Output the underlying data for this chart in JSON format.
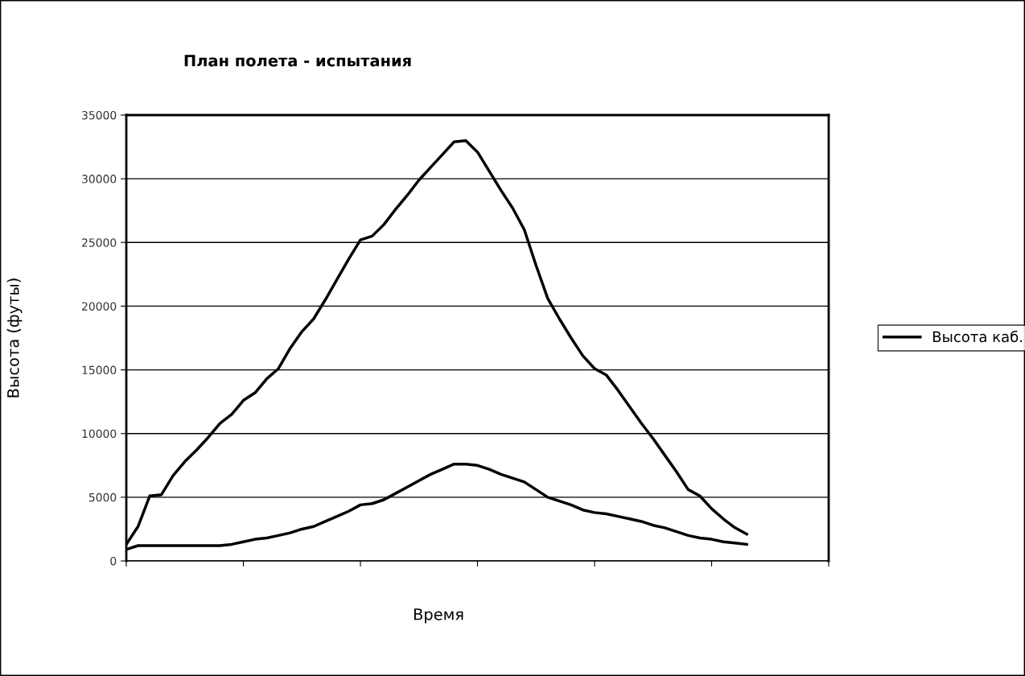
{
  "chart_data": {
    "type": "line",
    "title": "План полета - испытания",
    "xlabel": "Время",
    "ylabel": "Высота (футы)",
    "categories": [
      null,
      null,
      null,
      null,
      null,
      null,
      null,
      null,
      null,
      null,
      null,
      null,
      null,
      null,
      null,
      null,
      null,
      null,
      null,
      null,
      null,
      null,
      null,
      null,
      null,
      null,
      null,
      null,
      null,
      null,
      null,
      null,
      null,
      null,
      null,
      null,
      null,
      null,
      null,
      null,
      null,
      null,
      null,
      null,
      null,
      null,
      null,
      null,
      null,
      null,
      null,
      null,
      null,
      null,
      null,
      null,
      null,
      null,
      null,
      null,
      null
    ],
    "ylim": [
      0,
      35000
    ],
    "yticks": [
      0,
      5000,
      10000,
      15000,
      20000,
      25000,
      30000,
      35000
    ],
    "tick_labels": "y",
    "grid": "y",
    "legend": "right",
    "line_style": "solid",
    "marker": "none",
    "series": [
      {
        "color": "#000000",
        "values": [
          1300,
          2700,
          5100,
          5200,
          6700,
          7800,
          8700,
          9700,
          10800,
          11500,
          12600,
          13200,
          14300,
          15100,
          16700,
          18000,
          19000,
          20500,
          22100,
          23700,
          25200,
          25500,
          26400,
          27600,
          28700,
          29900,
          30900,
          31900,
          32900,
          33000,
          32100,
          30600,
          29100,
          27700,
          26000,
          23200,
          20600,
          19000,
          17500,
          16100,
          15100,
          14600,
          13400,
          12100,
          10800,
          9600,
          8300,
          7000,
          5600,
          5100,
          4100,
          3300,
          2600,
          2100,
          null,
          null,
          null,
          null,
          null,
          null,
          null
        ]
      },
      {
        "name": "Высота каб.",
        "color": "#000000",
        "values": [
          900,
          1200,
          1200,
          1200,
          1200,
          1200,
          1200,
          1200,
          1200,
          1300,
          1500,
          1700,
          1800,
          2000,
          2200,
          2500,
          2700,
          3100,
          3500,
          3900,
          4400,
          4500,
          4800,
          5300,
          5800,
          6300,
          6800,
          7200,
          7600,
          7600,
          7500,
          7200,
          6800,
          6500,
          6200,
          5600,
          5000,
          4700,
          4400,
          4000,
          3800,
          3700,
          3500,
          3300,
          3100,
          2800,
          2600,
          2300,
          2000,
          1800,
          1700,
          1500,
          1400,
          1300,
          null,
          null,
          null,
          null,
          null,
          null,
          null
        ]
      }
    ]
  }
}
